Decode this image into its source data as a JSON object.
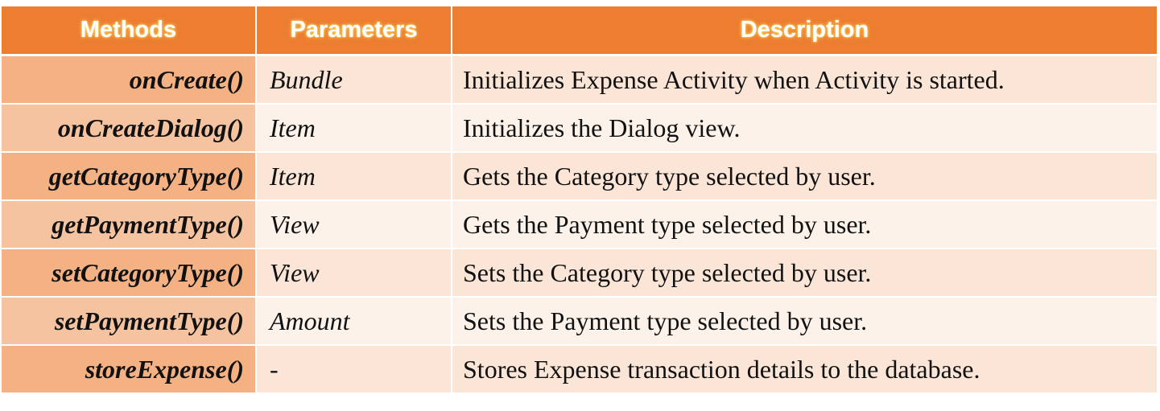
{
  "colors": {
    "header_bg": "#ED7D31",
    "header_text": "#FFFFFF",
    "method_col_bg": "#F4B183",
    "row_band_1": "#FBE5D6",
    "row_band_2": "#FDF2EA"
  },
  "table": {
    "headers": [
      "Methods",
      "Parameters",
      "Description"
    ],
    "rows": [
      {
        "method": "onCreate()",
        "params": "Bundle",
        "description": "Initializes Expense Activity when Activity is started."
      },
      {
        "method": "onCreateDialog()",
        "params": "Item",
        "description": "Initializes the Dialog view."
      },
      {
        "method": "getCategoryType()",
        "params": "Item",
        "description": "Gets the Category type selected by user."
      },
      {
        "method": "getPaymentType()",
        "params": "View",
        "description": "Gets the Payment type selected by user."
      },
      {
        "method": "setCategoryType()",
        "params": "View",
        "description": "Sets the Category type selected by user."
      },
      {
        "method": "setPaymentType()",
        "params": "Amount",
        "description": "Sets the Payment type selected by user."
      },
      {
        "method": "storeExpense()",
        "params": "-",
        "description": "Stores Expense transaction details to the database."
      }
    ]
  }
}
